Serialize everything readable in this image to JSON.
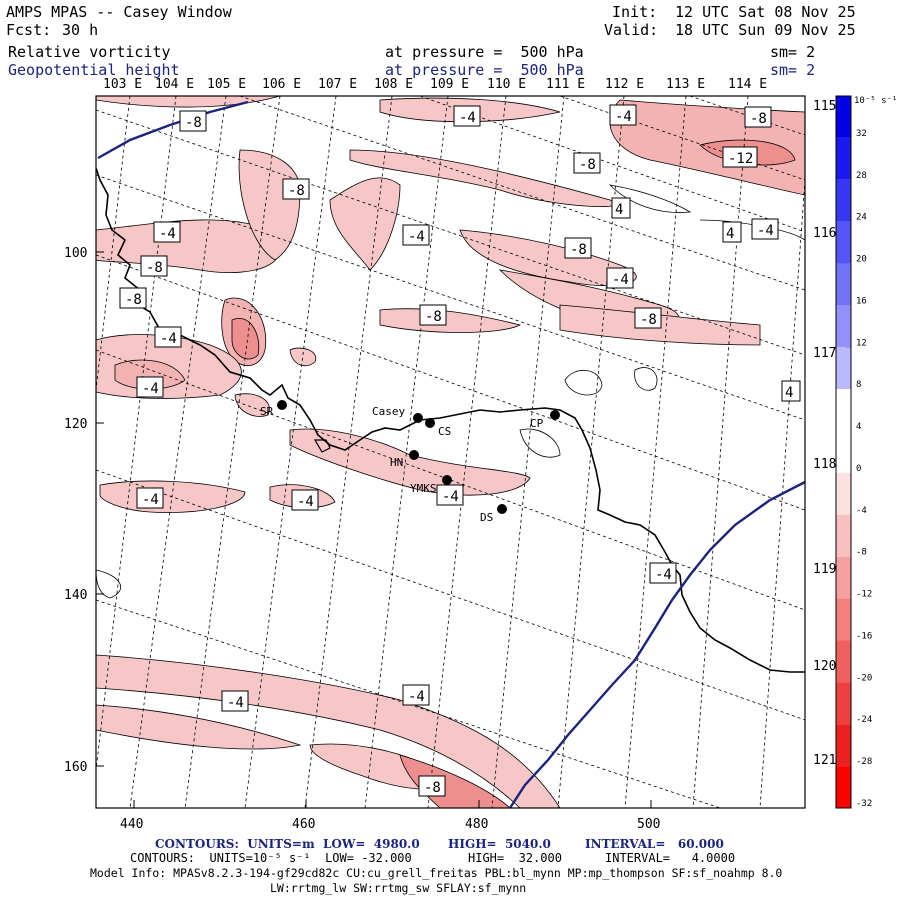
{
  "header": {
    "title": "AMPS MPAS -- Casey Window",
    "fcst_label": "Fcst:",
    "fcst_value": "30 h",
    "init_label": "Init:",
    "init_value": "12 UTC Sat 08 Nov 25",
    "valid_label": "Valid:",
    "valid_value": "18 UTC Sun 09 Nov 25",
    "field1": "Relative vorticity",
    "field1_level": "at pressure =  500 hPa",
    "field1_sm": "sm= 2",
    "field2": "Geopotential height",
    "field2_level": "at pressure =  500 hPa",
    "field2_sm": "sm= 2"
  },
  "map": {
    "top_longitudes": [
      "103 E",
      "104 E",
      "105 E",
      "106 E",
      "107 E",
      "108 E",
      "109 E",
      "110 E",
      "111 E",
      "112 E",
      "113 E",
      "114 E"
    ],
    "right_longitudes": [
      "115 E",
      "116 E",
      "117 E",
      "118 E",
      "119 E",
      "120 E",
      "121 E"
    ],
    "left_ticks": [
      "100",
      "120",
      "140",
      "160"
    ],
    "bottom_ticks": [
      "440",
      "460",
      "480",
      "500"
    ],
    "stations": [
      {
        "id": "SR",
        "label": "SR"
      },
      {
        "id": "Casey",
        "label": "Casey"
      },
      {
        "id": "CS",
        "label": "CS"
      },
      {
        "id": "HN",
        "label": "HN"
      },
      {
        "id": "YMKS",
        "label": "YMKS"
      },
      {
        "id": "DS",
        "label": "DS"
      },
      {
        "id": "CP",
        "label": "CP"
      }
    ],
    "contour_labels": [
      "-8",
      "-4",
      "-4",
      "-8",
      "-8",
      "-12",
      "-8",
      "4",
      "-4",
      "-4",
      "4",
      "-4",
      "-8",
      "-8",
      "-4",
      "-8",
      "-8",
      "-4",
      "-8",
      "-4",
      "4",
      "-4",
      "-4",
      "-4",
      "-4",
      "-4",
      "-4",
      "-8"
    ],
    "colors": {
      "height_contour": "#1a237e",
      "coast": "#000000",
      "positive_fill": "#f4b3b3"
    }
  },
  "colorbar": {
    "unit": "10⁻⁵ s⁻¹",
    "labels": [
      "32",
      "28",
      "24",
      "20",
      "16",
      "12",
      "8",
      "4",
      "0",
      "-4",
      "-8",
      "-12",
      "-16",
      "-20",
      "-24",
      "-28",
      "-32"
    ],
    "colors": [
      "#0000e6",
      "#1a1af0",
      "#3737f3",
      "#5555f5",
      "#7373f7",
      "#9191f9",
      "#b9b9fb",
      "#ffffff",
      "#ffffff",
      "#fde0e0",
      "#fac0c0",
      "#f7a0a0",
      "#f48080",
      "#f16060",
      "#ee4040",
      "#eb2020",
      "#ff0000"
    ]
  },
  "footer": {
    "line1_a": "CONTOURS:  UNITS=m  LOW=  4980.0",
    "line1_b": "HIGH=  5040.0",
    "line1_c": "INTERVAL=   60.000",
    "line2_a": "CONTOURS:  UNITS=10⁻⁵ s⁻¹  LOW= -32.000",
    "line2_b": "HIGH=  32.000",
    "line2_c": "INTERVAL=   4.0000",
    "line3": "Model Info: MPASv8.2.3-194-gf29cd82c CU:cu_grell_freitas PBL:bl_mynn MP:mp_thompson SF:sf_noahmp 8.0",
    "line4": "LW:rrtmg_lw SW:rrtmg_sw SFLAY:sf_mynn"
  }
}
